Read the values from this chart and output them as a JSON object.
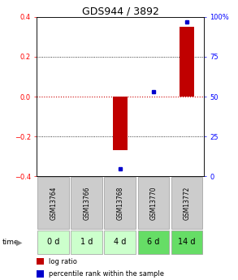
{
  "title": "GDS944 / 3892",
  "samples": [
    "GSM13764",
    "GSM13766",
    "GSM13768",
    "GSM13770",
    "GSM13772"
  ],
  "time_labels": [
    "0 d",
    "1 d",
    "4 d",
    "6 d",
    "14 d"
  ],
  "log_ratio": [
    0.0,
    0.0,
    -0.27,
    0.0,
    0.35
  ],
  "percentile_rank": [
    null,
    null,
    5.0,
    53.0,
    97.0
  ],
  "ylim_left": [
    -0.4,
    0.4
  ],
  "ylim_right": [
    0,
    100
  ],
  "yticks_left": [
    -0.4,
    -0.2,
    0.0,
    0.2,
    0.4
  ],
  "yticks_right": [
    0,
    25,
    50,
    75,
    100
  ],
  "ytick_labels_right": [
    "0",
    "25",
    "50",
    "75",
    "100%"
  ],
  "bar_color": "#c00000",
  "dot_color": "#0000cc",
  "zero_line_color": "#cc0000",
  "sample_box_color": "#cccccc",
  "time_box_colors": [
    "#ccffcc",
    "#ccffcc",
    "#ccffcc",
    "#66dd66",
    "#66dd66"
  ],
  "legend_bar_color": "#c00000",
  "legend_dot_color": "#0000cc",
  "background_color": "#ffffff",
  "title_fontsize": 9,
  "axis_fontsize": 6,
  "label_fontsize": 6.5,
  "legend_fontsize": 6,
  "sample_fontsize": 5.5,
  "time_fontsize": 7
}
